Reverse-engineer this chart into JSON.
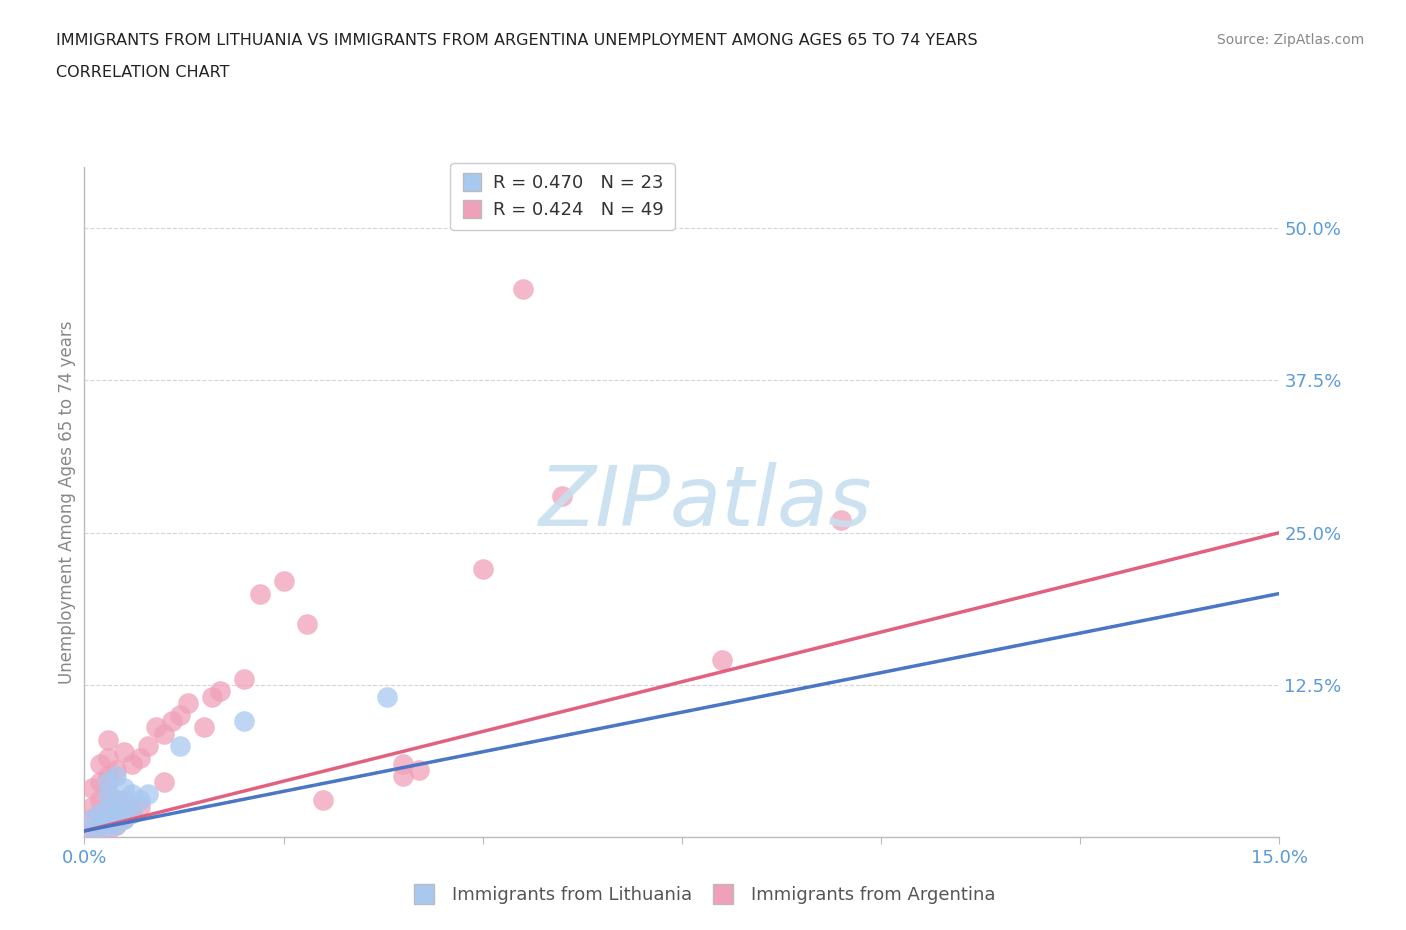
{
  "title_line1": "IMMIGRANTS FROM LITHUANIA VS IMMIGRANTS FROM ARGENTINA UNEMPLOYMENT AMONG AGES 65 TO 74 YEARS",
  "title_line2": "CORRELATION CHART",
  "source": "Source: ZipAtlas.com",
  "ylabel_label": "Unemployment Among Ages 65 to 74 years",
  "xlim": [
    0.0,
    0.15
  ],
  "ylim": [
    0.0,
    0.55
  ],
  "xtick_positions": [
    0.0,
    0.025,
    0.05,
    0.075,
    0.1,
    0.125,
    0.15
  ],
  "xtick_labels": [
    "0.0%",
    "",
    "",
    "",
    "",
    "",
    "15.0%"
  ],
  "ytick_positions": [
    0.0,
    0.125,
    0.25,
    0.375,
    0.5
  ],
  "ytick_labels": [
    "",
    "12.5%",
    "25.0%",
    "37.5%",
    "50.0%"
  ],
  "legend_r_lithuania": "R = 0.470",
  "legend_n_lithuania": "N = 23",
  "legend_r_argentina": "R = 0.424",
  "legend_n_argentina": "N = 49",
  "color_lithuania": "#a8c8f0",
  "color_argentina": "#f0a0b8",
  "line_color_lithuania_solid": "#4472c4",
  "line_color_lithuania_dashed": "#7ab0e0",
  "line_color_argentina": "#e05878",
  "watermark": "ZIPatlas",
  "watermark_color": "#c8dff0",
  "title_color": "#222222",
  "source_color": "#888888",
  "tick_color": "#5b9bd5",
  "ylabel_color": "#888888",
  "grid_color": "#cccccc",
  "legend_text_color": "#444444",
  "legend_r_color": "#5b9bd5",
  "legend_n_color": "#e05878",
  "bottom_legend_label_lith": "Immigrants from Lithuania",
  "bottom_legend_label_arg": "Immigrants from Argentina",
  "lithuania_x": [
    0.001,
    0.001,
    0.002,
    0.002,
    0.003,
    0.003,
    0.003,
    0.003,
    0.003,
    0.004,
    0.004,
    0.004,
    0.004,
    0.005,
    0.005,
    0.005,
    0.006,
    0.006,
    0.007,
    0.008,
    0.012,
    0.02,
    0.038
  ],
  "lithuania_y": [
    0.005,
    0.015,
    0.01,
    0.02,
    0.008,
    0.015,
    0.025,
    0.035,
    0.045,
    0.01,
    0.02,
    0.03,
    0.05,
    0.015,
    0.025,
    0.04,
    0.02,
    0.035,
    0.03,
    0.035,
    0.075,
    0.095,
    0.115
  ],
  "argentina_x": [
    0.001,
    0.001,
    0.001,
    0.001,
    0.002,
    0.002,
    0.002,
    0.002,
    0.002,
    0.003,
    0.003,
    0.003,
    0.003,
    0.003,
    0.003,
    0.003,
    0.004,
    0.004,
    0.004,
    0.005,
    0.005,
    0.005,
    0.006,
    0.006,
    0.007,
    0.007,
    0.008,
    0.009,
    0.01,
    0.01,
    0.011,
    0.012,
    0.013,
    0.015,
    0.016,
    0.017,
    0.02,
    0.022,
    0.025,
    0.028,
    0.03,
    0.04,
    0.042,
    0.05,
    0.055,
    0.06,
    0.08,
    0.095,
    0.04
  ],
  "argentina_y": [
    0.005,
    0.015,
    0.025,
    0.04,
    0.01,
    0.02,
    0.03,
    0.045,
    0.06,
    0.005,
    0.015,
    0.025,
    0.035,
    0.05,
    0.065,
    0.08,
    0.01,
    0.03,
    0.055,
    0.015,
    0.03,
    0.07,
    0.02,
    0.06,
    0.025,
    0.065,
    0.075,
    0.09,
    0.045,
    0.085,
    0.095,
    0.1,
    0.11,
    0.09,
    0.115,
    0.12,
    0.13,
    0.2,
    0.21,
    0.175,
    0.03,
    0.06,
    0.055,
    0.22,
    0.45,
    0.28,
    0.145,
    0.26,
    0.05
  ],
  "line_lith_x0": 0.0,
  "line_lith_y0": 0.005,
  "line_lith_x1": 0.15,
  "line_lith_y1": 0.2,
  "line_arg_x0": 0.0,
  "line_arg_y0": 0.005,
  "line_arg_x1": 0.15,
  "line_arg_y1": 0.25
}
